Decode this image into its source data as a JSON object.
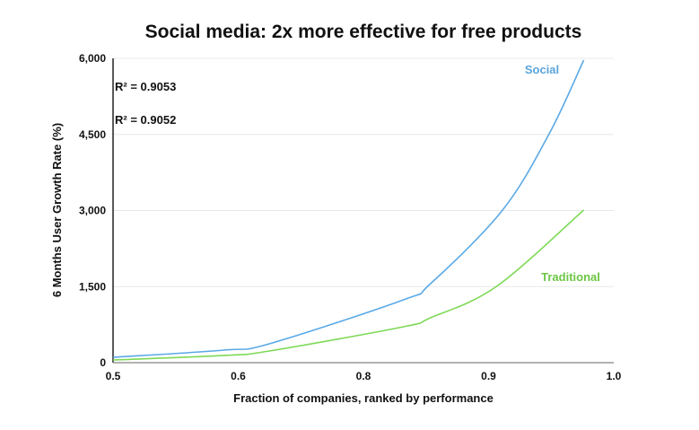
{
  "chart_data": {
    "type": "line",
    "title": "Social media: 2x more effective for free products",
    "xlabel": "Fraction of companies, ranked by performance",
    "ylabel": "6 Months User Growth Rate (%)",
    "xlim": [
      0.5,
      1.0
    ],
    "ylim": [
      0,
      6000
    ],
    "x_ticks": [
      0.5,
      0.625,
      0.75,
      0.875,
      1.0
    ],
    "x_tick_labels": [
      "0.5",
      "0.6",
      "0.8",
      "0.9",
      "1.0"
    ],
    "y_ticks": [
      0,
      1500,
      3000,
      4500,
      6000
    ],
    "y_tick_labels": [
      "0",
      "1,500",
      "3,000",
      "4,500",
      "6,000"
    ],
    "grid": true,
    "legend": "inline labels near line ends",
    "series": [
      {
        "name": "Social",
        "color": "#5aa9e6",
        "label_color": "#5aa5dc",
        "r_squared_label": "R² = 0.9053",
        "points": [
          [
            0.5,
            106
          ],
          [
            0.611,
            248
          ],
          [
            0.656,
            372
          ],
          [
            0.79,
            1239
          ],
          [
            0.817,
            1557
          ],
          [
            0.889,
            3009
          ],
          [
            0.936,
            4531
          ],
          [
            0.97,
            5965
          ]
        ]
      },
      {
        "name": "Traditional",
        "color": "#7ed957",
        "label_color": "#6cc644",
        "r_squared_label": "R² = 0.9052",
        "points": [
          [
            0.5,
            53
          ],
          [
            0.611,
            142
          ],
          [
            0.656,
            230
          ],
          [
            0.79,
            708
          ],
          [
            0.817,
            885
          ],
          [
            0.883,
            1504
          ],
          [
            0.97,
            3009
          ]
        ]
      }
    ]
  }
}
